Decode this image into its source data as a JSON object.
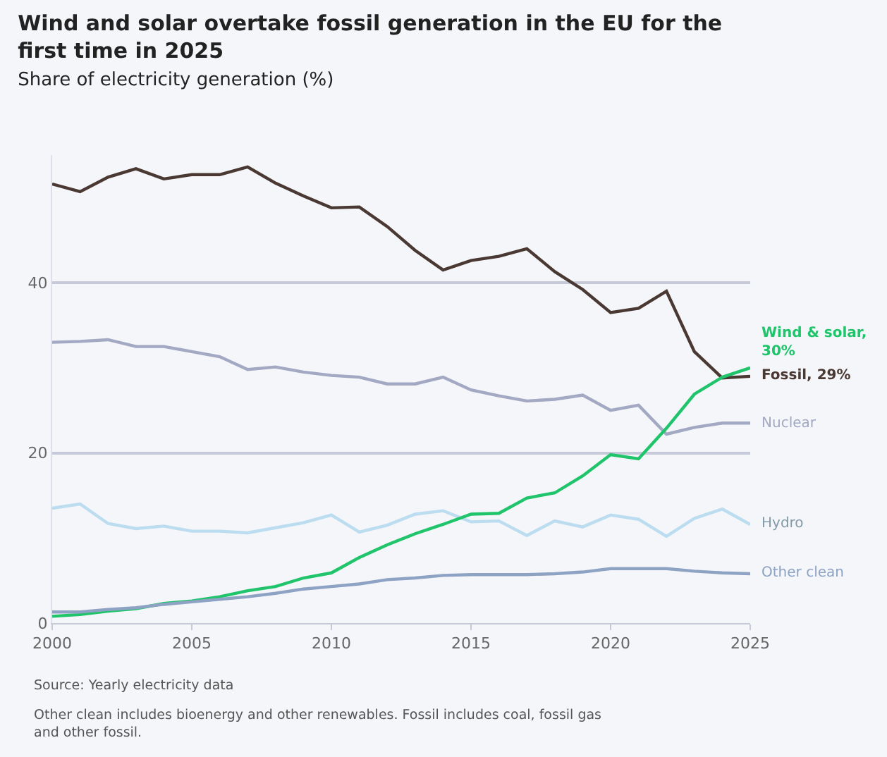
{
  "chart_data": {
    "type": "line",
    "title": "Wind and solar overtake fossil generation in the EU for the first time in 2025",
    "subtitle": "Share of electricity generation (%)",
    "x": [
      2000,
      2001,
      2002,
      2003,
      2004,
      2005,
      2006,
      2007,
      2008,
      2009,
      2010,
      2011,
      2012,
      2013,
      2014,
      2015,
      2016,
      2017,
      2018,
      2019,
      2020,
      2021,
      2022,
      2023,
      2024,
      2025
    ],
    "series": [
      {
        "color": "#4a3833",
        "values": [
          51.6,
          50.7,
          52.4,
          53.4,
          52.2,
          52.7,
          52.7,
          53.6,
          51.7,
          50.2,
          48.8,
          48.9,
          46.6,
          43.8,
          41.5,
          42.6,
          43.1,
          44.0,
          41.3,
          39.2,
          36.5,
          37.0,
          39.0,
          31.9,
          28.8,
          29
        ]
      },
      {
        "name": "Nuclear",
        "color": "#a3a8c3",
        "values": [
          33.0,
          33.1,
          33.3,
          32.5,
          32.5,
          31.9,
          31.3,
          29.8,
          30.1,
          29.5,
          29.1,
          28.9,
          28.1,
          28.1,
          28.9,
          27.4,
          26.7,
          26.1,
          26.3,
          26.8,
          25.0,
          25.6,
          22.2,
          23.0,
          23.5,
          23.5
        ]
      },
      {
        "name": "Hydro",
        "color": "#bcdcf0",
        "values": [
          13.5,
          14.0,
          11.7,
          11.1,
          11.4,
          10.8,
          10.8,
          10.6,
          11.2,
          11.8,
          12.7,
          10.7,
          11.5,
          12.8,
          13.2,
          11.9,
          12.0,
          10.3,
          12.0,
          11.3,
          12.7,
          12.2,
          10.2,
          12.3,
          13.4,
          11.6
        ]
      },
      {
        "color": "#1fc46b",
        "values": [
          0.8,
          1.0,
          1.4,
          1.7,
          2.3,
          2.6,
          3.1,
          3.8,
          4.3,
          5.3,
          5.9,
          7.7,
          9.2,
          10.5,
          11.6,
          12.8,
          12.9,
          14.7,
          15.3,
          17.3,
          19.8,
          19.3,
          22.9,
          26.9,
          28.9,
          30
        ]
      },
      {
        "name": "Other clean",
        "color": "#8ea3c3",
        "values": [
          1.3,
          1.3,
          1.6,
          1.8,
          2.2,
          2.5,
          2.8,
          3.1,
          3.5,
          4.0,
          4.3,
          4.6,
          5.1,
          5.3,
          5.6,
          5.7,
          5.7,
          5.7,
          5.8,
          6.0,
          6.4,
          6.4,
          6.4,
          6.1,
          5.9,
          5.8
        ]
      }
    ],
    "xlim": [
      2000,
      2025
    ],
    "xticks": [
      2000,
      2005,
      2010,
      2015,
      2020,
      2025
    ],
    "ylim": [
      0,
      55
    ],
    "yticks": [
      0,
      20,
      40
    ],
    "grid": "y",
    "legend": false,
    "line_style": "solid",
    "annotations": [
      {
        "text": "Wind & solar, 30%",
        "x": 2025,
        "y": 30
      },
      {
        "text": "Fossil, 29%",
        "x": 2025,
        "y": 29
      },
      "Source: Yearly electricity data",
      "Other clean includes bioenergy and other renewables. Fossil includes coal, fossil gas and other fossil."
    ]
  }
}
